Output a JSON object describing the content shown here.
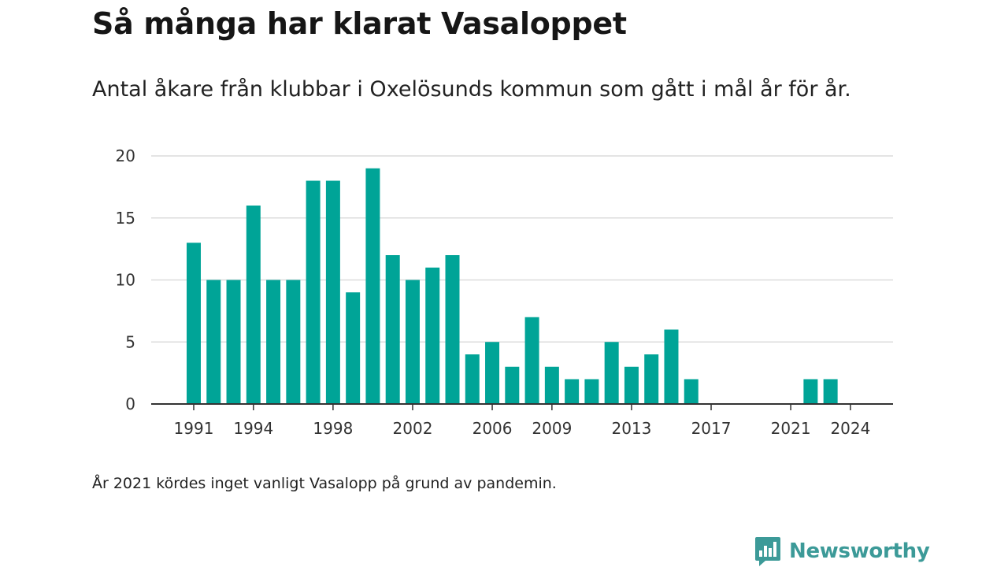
{
  "title": "Så många har klarat Vasaloppet",
  "subtitle": "Antal åkare från klubbar i Oxelösunds kommun som gått i mål år för år.",
  "note": "År 2021 kördes inget vanligt Vasalopp på grund av pandemin.",
  "logo_text": "Newsworthy",
  "logo_icon": "newsworthy-bar-chart-icon",
  "colors": {
    "bar": "#00a497",
    "grid": "#dcdcdc",
    "axis": "#333333",
    "logo": "#3c9a98"
  },
  "chart_data": {
    "type": "bar",
    "x": [
      1991,
      1992,
      1993,
      1994,
      1995,
      1996,
      1997,
      1998,
      1999,
      2000,
      2001,
      2002,
      2003,
      2004,
      2005,
      2006,
      2007,
      2008,
      2009,
      2010,
      2011,
      2012,
      2013,
      2014,
      2015,
      2016,
      2017,
      2018,
      2019,
      2020,
      2021,
      2022,
      2023,
      2024
    ],
    "values": [
      13,
      10,
      10,
      16,
      10,
      10,
      18,
      18,
      9,
      19,
      12,
      10,
      11,
      12,
      4,
      5,
      3,
      7,
      3,
      2,
      2,
      5,
      3,
      4,
      6,
      2,
      0,
      0,
      0,
      0,
      0,
      2,
      2,
      0
    ],
    "x_ticks": [
      "1991",
      "1994",
      "1998",
      "2002",
      "2006",
      "2009",
      "2013",
      "2017",
      "2021",
      "2024"
    ],
    "y_ticks": [
      "0",
      "5",
      "10",
      "15",
      "20"
    ],
    "ylim": [
      0,
      20
    ],
    "grid": true,
    "xlabel": "",
    "ylabel": ""
  }
}
